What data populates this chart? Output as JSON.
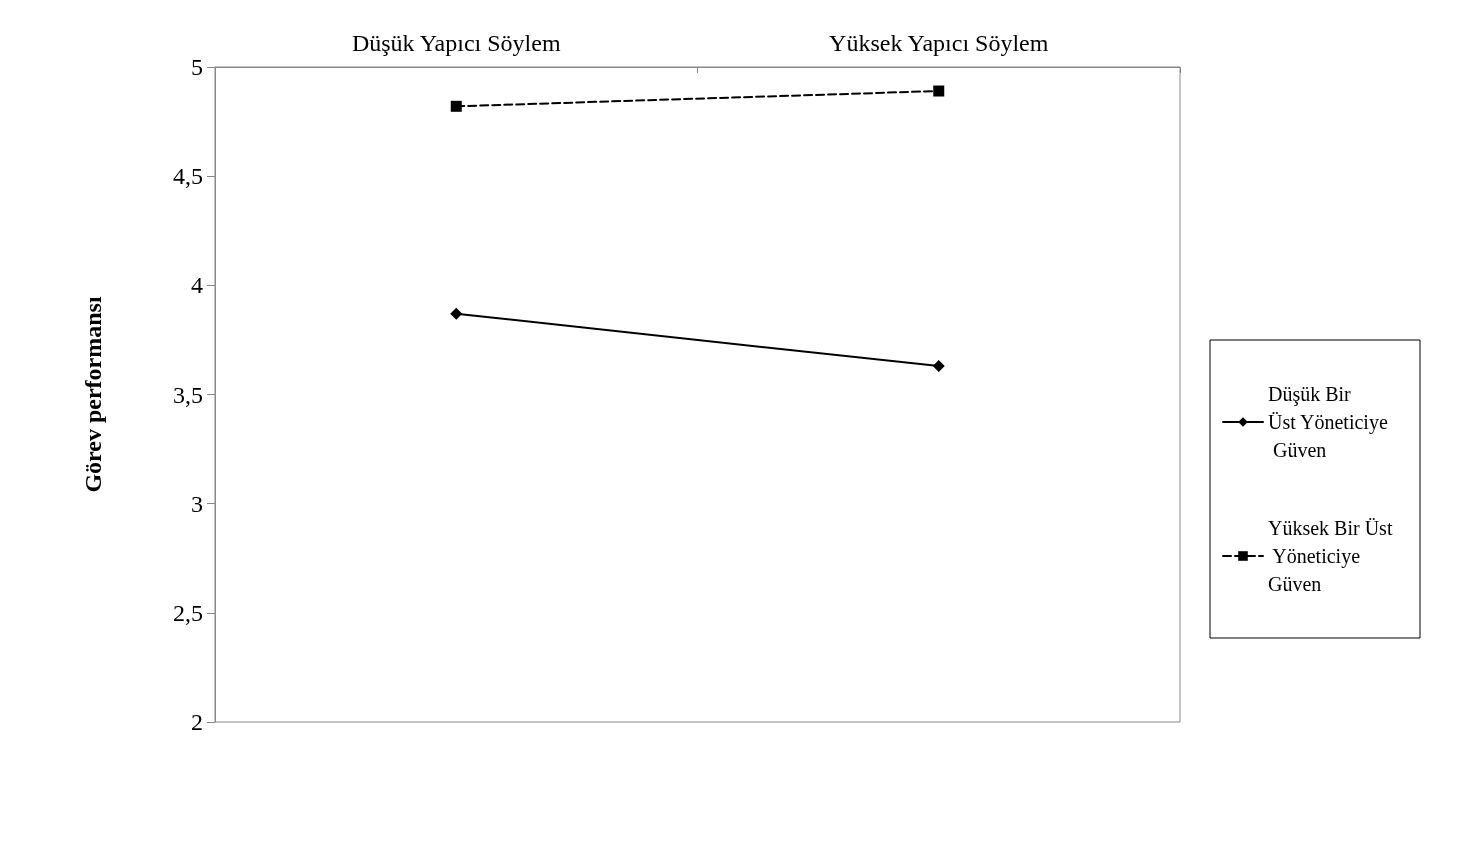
{
  "chart_data": {
    "type": "line",
    "ylabel": "Görev performansı",
    "categories": [
      "Düşük Yapıcı Söylem",
      "Yüksek Yapıcı Söylem"
    ],
    "series": [
      {
        "name": "Düşük Bir Üst Yöneticiye Güven",
        "color": "#000000",
        "values": [
          3.87,
          3.63
        ],
        "marker": "diamond",
        "line_style": "solid"
      },
      {
        "name": "Yüksek Bir Üst Yöneticiye Güven",
        "color": "#000000",
        "values": [
          4.82,
          4.89
        ],
        "marker": "square",
        "line_style": "dashed"
      }
    ],
    "ylim": [
      2,
      5
    ],
    "yticks": [
      2,
      {
        "value": 2.5,
        "label": "2,5"
      },
      3,
      {
        "value": 3.5,
        "label": "3,5"
      },
      4,
      {
        "value": 4.5,
        "label": "4,5"
      },
      5
    ],
    "grid": false,
    "legend": "right"
  }
}
